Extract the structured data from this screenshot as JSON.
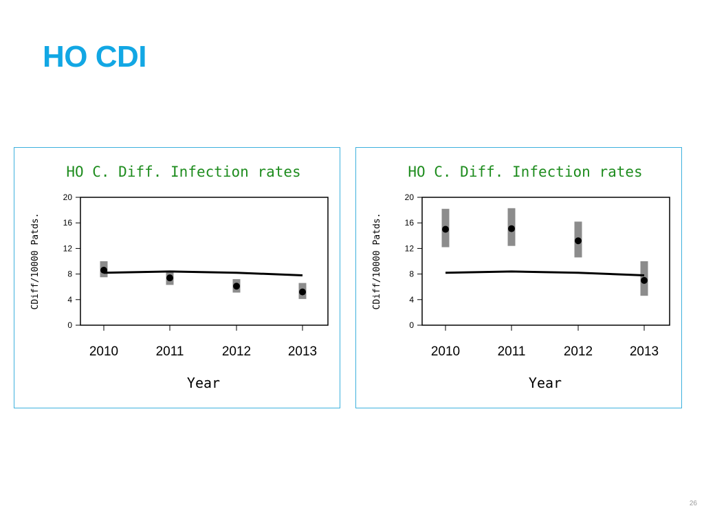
{
  "slide": {
    "title": "HO CDI",
    "page_number": "26"
  },
  "colors": {
    "title": "#12a7e4",
    "chart_title": "#1e8c1e",
    "panel_border": "#3bb0dd",
    "interval": "#8c8c8c",
    "marks": "#000000"
  },
  "chart_data": [
    {
      "type": "line",
      "title": "HO C. Diff. Infection rates",
      "xlabel": "Year",
      "ylabel": "CDiff/10000 Patds.",
      "categories": [
        "2010",
        "2011",
        "2012",
        "2013"
      ],
      "yticks": [
        0,
        4,
        8,
        12,
        16,
        20
      ],
      "ylim": [
        0,
        20
      ],
      "grid": false,
      "series": [
        {
          "type": "line",
          "values": [
            8.2,
            8.4,
            8.2,
            7.8
          ]
        },
        {
          "type": "point_with_interval",
          "values": [
            8.6,
            7.4,
            6.1,
            5.2
          ],
          "lower": [
            7.5,
            6.3,
            5.1,
            4.1
          ],
          "upper": [
            10.0,
            8.3,
            7.2,
            6.6
          ]
        }
      ]
    },
    {
      "type": "line",
      "title": "HO C. Diff. Infection rates",
      "xlabel": "Year",
      "ylabel": "CDiff/10000 Patds.",
      "categories": [
        "2010",
        "2011",
        "2012",
        "2013"
      ],
      "yticks": [
        0,
        4,
        8,
        12,
        16,
        20
      ],
      "ylim": [
        0,
        20
      ],
      "grid": false,
      "series": [
        {
          "type": "line",
          "values": [
            8.2,
            8.4,
            8.2,
            7.8
          ]
        },
        {
          "type": "point_with_interval",
          "values": [
            15.0,
            15.1,
            13.2,
            7.0
          ],
          "lower": [
            12.2,
            12.4,
            10.6,
            4.6
          ],
          "upper": [
            18.2,
            18.3,
            16.2,
            10.0
          ]
        }
      ]
    }
  ]
}
